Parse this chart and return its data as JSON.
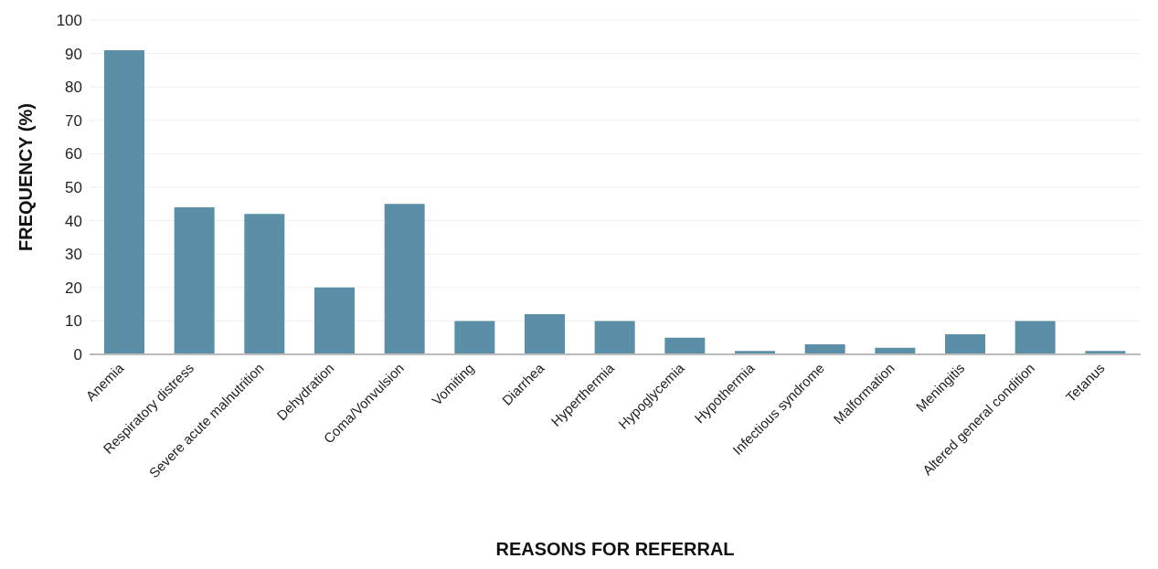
{
  "chart_data": {
    "type": "bar",
    "xlabel": "REASONS FOR REFERRAL",
    "ylabel": "FREQUENCY (%)",
    "categories": [
      "Anemia",
      "Respiratory distress",
      "Severe acute malnutrition",
      "Dehydration",
      "Coma/Vonvulsion",
      "Vomiting",
      "Diarrhea",
      "Hyperthermia",
      "Hypoglycemia",
      "Hypothermia",
      "Infectious syndrome",
      "Malformation",
      "Meningitis",
      "Altered general condition",
      "Tetanus"
    ],
    "values": [
      91,
      44,
      42,
      20,
      45,
      10,
      12,
      10,
      5,
      1,
      3,
      2,
      6,
      10,
      1
    ],
    "color": "#5b8fa8",
    "ylim": [
      0,
      100
    ],
    "yticks": [
      0,
      10,
      20,
      30,
      40,
      50,
      60,
      70,
      80,
      90,
      100
    ],
    "grid": "y"
  }
}
